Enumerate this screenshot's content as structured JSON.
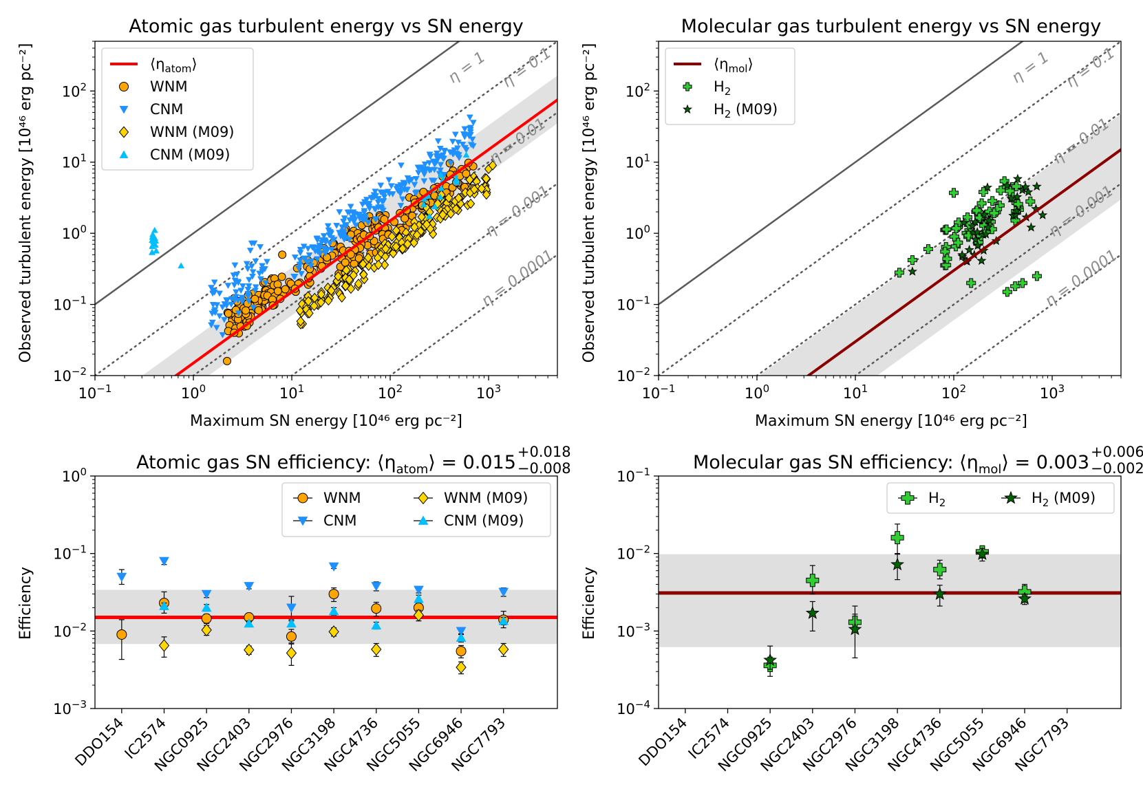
{
  "figure": {
    "background": "#ffffff"
  },
  "chart_data": [
    {
      "id": "p1",
      "type": "scatter",
      "title": "Atomic gas turbulent energy vs SN energy",
      "xlabel": "Maximum SN energy [10⁴⁶ erg pc⁻²]",
      "ylabel": "Observed turbulent energy [10⁴⁶ erg pc⁻²]",
      "xscale": "log",
      "yscale": "log",
      "xlim": [
        0.1,
        5000
      ],
      "ylim": [
        0.01,
        500
      ],
      "xticks": [
        {
          "v": 0.1,
          "b": "10",
          "e": "−1"
        },
        {
          "v": 1,
          "b": "10",
          "e": "0"
        },
        {
          "v": 10,
          "b": "10",
          "e": "1"
        },
        {
          "v": 100,
          "b": "10",
          "e": "2"
        },
        {
          "v": 1000,
          "b": "10",
          "e": "3"
        }
      ],
      "yticks": [
        {
          "v": 0.01,
          "b": "10",
          "e": "−2"
        },
        {
          "v": 0.1,
          "b": "10",
          "e": "−1"
        },
        {
          "v": 1,
          "b": "10",
          "e": "0"
        },
        {
          "v": 10,
          "b": "10",
          "e": "1"
        },
        {
          "v": 100,
          "b": "10",
          "e": "2"
        }
      ],
      "eta_lines": [
        {
          "eta": 1,
          "label": "η = 1",
          "style": "solid"
        },
        {
          "eta": 0.1,
          "label": "η = 0.1",
          "style": "dotted"
        },
        {
          "eta": 0.01,
          "label": "η = 0.01",
          "style": "dotted"
        },
        {
          "eta": 0.001,
          "label": "η = 0.001",
          "style": "dotted"
        },
        {
          "eta": 0.0001,
          "label": "η = 0.0001",
          "style": "dotted"
        }
      ],
      "mean": {
        "value": 0.015,
        "low": 0.007,
        "high": 0.033,
        "color": "#ff0000",
        "label": "⟨η",
        "sub": "atom",
        "suffix": "⟩"
      },
      "legend": [
        {
          "key": "mean",
          "label": "⟨η",
          "sub": "atom",
          "suffix": "⟩"
        },
        {
          "key": "wnm",
          "label": "WNM"
        },
        {
          "key": "cnm",
          "label": "CNM"
        },
        {
          "key": "wnm09",
          "label": "WNM (M09)"
        },
        {
          "key": "cnm09",
          "label": "CNM (M09)"
        }
      ],
      "series": [
        {
          "key": "wnm",
          "name": "WNM",
          "marker": "circle",
          "color": "#ffa500",
          "clouds": [
            {
              "x": [
                2.2,
                8
              ],
              "eta": 0.025,
              "n": 90,
              "spread": 0.2
            },
            {
              "x": [
                6,
                90
              ],
              "eta": 0.02,
              "n": 80,
              "spread": 0.15
            },
            {
              "x": [
                30,
                700
              ],
              "eta": 0.012,
              "n": 110,
              "spread": 0.2
            }
          ],
          "points": [
            {
              "x": 2.2,
              "y": 0.016
            },
            {
              "x": 2.6,
              "y": 0.04
            },
            {
              "x": 3.5,
              "y": 0.05
            },
            {
              "x": 8,
              "y": 0.5
            }
          ]
        },
        {
          "key": "cnm",
          "name": "CNM",
          "marker": "tri_down",
          "color": "#1e90ff",
          "clouds": [
            {
              "x": [
                1.5,
                6
              ],
              "eta": 0.06,
              "n": 70,
              "spread": 0.35
            },
            {
              "x": [
                10,
                700
              ],
              "eta": 0.035,
              "n": 230,
              "spread": 0.18
            }
          ],
          "points": []
        },
        {
          "key": "wnm09",
          "name": "WNM (M09)",
          "marker": "diamond",
          "color": "#ffd700",
          "clouds": [
            {
              "x": [
                12,
                1000
              ],
              "eta": 0.006,
              "n": 190,
              "spread": 0.15
            }
          ],
          "points": [
            {
              "x": 1000,
              "y": 8
            },
            {
              "x": 1100,
              "y": 9
            },
            {
              "x": 950,
              "y": 3.5
            }
          ]
        },
        {
          "key": "cnm09",
          "name": "CNM (M09)",
          "marker": "tri_up",
          "color": "#00bfff",
          "clouds": [
            {
              "x": [
                0.38,
                0.42
              ],
              "eta": 2.0,
              "n": 14,
              "spread": 0.15
            },
            {
              "x": [
                200,
                600
              ],
              "eta": 0.012,
              "n": 15,
              "spread": 0.2
            }
          ],
          "points": [
            {
              "x": 0.75,
              "y": 0.35
            }
          ]
        }
      ]
    },
    {
      "id": "p2",
      "type": "scatter",
      "title": "Molecular gas turbulent energy vs SN energy",
      "xlabel": "Maximum SN energy [10⁴⁶ erg pc⁻²]",
      "ylabel": "Observed turbulent energy [10⁴⁶ erg pc⁻²]",
      "xscale": "log",
      "yscale": "log",
      "xlim": [
        0.1,
        5000
      ],
      "ylim": [
        0.01,
        500
      ],
      "xticks": [
        {
          "v": 0.1,
          "b": "10",
          "e": "−1"
        },
        {
          "v": 1,
          "b": "10",
          "e": "0"
        },
        {
          "v": 10,
          "b": "10",
          "e": "1"
        },
        {
          "v": 100,
          "b": "10",
          "e": "2"
        },
        {
          "v": 1000,
          "b": "10",
          "e": "3"
        }
      ],
      "yticks": [
        {
          "v": 0.01,
          "b": "10",
          "e": "−2"
        },
        {
          "v": 0.1,
          "b": "10",
          "e": "−1"
        },
        {
          "v": 1,
          "b": "10",
          "e": "0"
        },
        {
          "v": 10,
          "b": "10",
          "e": "1"
        },
        {
          "v": 100,
          "b": "10",
          "e": "2"
        }
      ],
      "eta_lines": [
        {
          "eta": 1,
          "label": "η = 1",
          "style": "solid"
        },
        {
          "eta": 0.1,
          "label": "η = 0.1",
          "style": "dotted"
        },
        {
          "eta": 0.01,
          "label": "η = 0.01",
          "style": "dotted"
        },
        {
          "eta": 0.001,
          "label": "η = 0.001",
          "style": "dotted"
        },
        {
          "eta": 0.0001,
          "label": "η = 0.0001",
          "style": "dotted"
        }
      ],
      "mean": {
        "value": 0.003,
        "low": 0.0006,
        "high": 0.0095,
        "color": "#8b0000",
        "label": "⟨η",
        "sub": "mol",
        "suffix": "⟩"
      },
      "legend": [
        {
          "key": "mean",
          "label": "⟨η",
          "sub": "mol",
          "suffix": "⟩"
        },
        {
          "key": "h2",
          "label": "H",
          "sub": "2"
        },
        {
          "key": "h209",
          "label": "H",
          "sub": "2",
          "suffix": " (M09)"
        }
      ],
      "series": [
        {
          "key": "h2",
          "name": "H2",
          "marker": "plus",
          "color": "#32cd32",
          "clouds": [
            {
              "x": [
                80,
                500
              ],
              "eta": 0.008,
              "n": 55,
              "spread": 0.3
            }
          ],
          "points": [
            {
              "x": 28,
              "y": 0.28
            },
            {
              "x": 38,
              "y": 0.42
            },
            {
              "x": 55,
              "y": 0.6
            },
            {
              "x": 100,
              "y": 3.7
            },
            {
              "x": 350,
              "y": 0.15
            },
            {
              "x": 420,
              "y": 0.18
            },
            {
              "x": 500,
              "y": 0.2
            },
            {
              "x": 700,
              "y": 0.25
            },
            {
              "x": 150,
              "y": 0.2
            },
            {
              "x": 200,
              "y": 3.8
            },
            {
              "x": 300,
              "y": 4.0
            },
            {
              "x": 600,
              "y": 2.8
            }
          ]
        },
        {
          "key": "h209",
          "name": "H2 (M09)",
          "marker": "star",
          "color": "#006400",
          "clouds": [
            {
              "x": [
                120,
                800
              ],
              "eta": 0.005,
              "n": 35,
              "spread": 0.3
            }
          ],
          "points": [
            {
              "x": 38,
              "y": 0.29
            },
            {
              "x": 220,
              "y": 4.4
            },
            {
              "x": 800,
              "y": 1.8
            }
          ]
        }
      ]
    },
    {
      "id": "p3",
      "type": "errorbar",
      "title": "Atomic gas SN efficiency: ⟨η",
      "title_sub": "atom",
      "title_tail": "⟩ = 0.015",
      "title_sup_top": "+0.018",
      "title_sup_bot": "−0.008",
      "ylabel": "Efficiency",
      "yscale": "log",
      "ylim": [
        0.001,
        1
      ],
      "yticks": [
        {
          "v": 0.001,
          "b": "10",
          "e": "−3"
        },
        {
          "v": 0.01,
          "b": "10",
          "e": "−2"
        },
        {
          "v": 0.1,
          "b": "10",
          "e": "−1"
        },
        {
          "v": 1,
          "b": "10",
          "e": "0"
        }
      ],
      "categories": [
        "DDO154",
        "IC2574",
        "NGC0925",
        "NGC2403",
        "NGC2976",
        "NGC3198",
        "NGC4736",
        "NGC5055",
        "NGC6946",
        "NGC7793"
      ],
      "mean": {
        "value": 0.015,
        "low": 0.0068,
        "high": 0.034,
        "color": "#ff0000"
      },
      "legend": [
        {
          "key": "wnm",
          "label": "WNM"
        },
        {
          "key": "wnm09",
          "label": "WNM (M09)"
        },
        {
          "key": "cnm",
          "label": "CNM"
        },
        {
          "key": "cnm09",
          "label": "CNM (M09)"
        }
      ],
      "series": [
        {
          "key": "wnm",
          "name": "WNM",
          "marker": "circle",
          "color": "#ffa500",
          "values": [
            0.009,
            0.023,
            0.0145,
            0.015,
            0.0085,
            0.03,
            0.0195,
            0.02,
            0.0055,
            0.014
          ],
          "err_lo": [
            0.0047,
            0.006,
            0.002,
            0.002,
            0.0015,
            0.006,
            0.004,
            0.004,
            0.001,
            0.003
          ],
          "err_hi": [
            0.005,
            0.009,
            0.002,
            0.002,
            0.002,
            0.006,
            0.004,
            0.004,
            0.001,
            0.004
          ]
        },
        {
          "key": "cnm",
          "name": "CNM",
          "marker": "tri_down",
          "color": "#1e90ff",
          "values": [
            0.05,
            0.08,
            0.03,
            0.038,
            0.02,
            0.068,
            0.038,
            0.034,
            0.01,
            0.032
          ],
          "err_lo": [
            0.01,
            0.008,
            0.003,
            0.003,
            0.006,
            0.004,
            0.005,
            0.003,
            0.001,
            0.004
          ],
          "err_hi": [
            0.012,
            0.008,
            0.003,
            0.003,
            0.008,
            0.004,
            0.005,
            0.003,
            0.001,
            0.004
          ]
        },
        {
          "key": "wnm09",
          "name": "WNM (M09)",
          "marker": "diamond",
          "color": "#ffd700",
          "values": [
            null,
            0.0065,
            0.0103,
            0.0057,
            0.0052,
            0.0098,
            0.0058,
            0.016,
            0.0034,
            0.0058
          ],
          "err_lo": [
            null,
            0.0019,
            0.0015,
            0.0007,
            0.0016,
            0.0012,
            0.0011,
            0.0025,
            0.0006,
            0.0011
          ],
          "err_hi": [
            null,
            0.0019,
            0.0015,
            0.0007,
            0.0016,
            0.0012,
            0.0011,
            0.0025,
            0.0006,
            0.0011
          ]
        },
        {
          "key": "cnm09",
          "name": "CNM (M09)",
          "marker": "tri_up",
          "color": "#00bfff",
          "values": [
            null,
            0.021,
            0.02,
            0.0125,
            0.0125,
            0.018,
            0.0118,
            0.026,
            0.0082,
            0.0135
          ],
          "err_lo": [
            null,
            0.002,
            0.002,
            0.001,
            0.001,
            0.002,
            0.0012,
            0.003,
            0.001,
            0.0015
          ],
          "err_hi": [
            null,
            0.002,
            0.002,
            0.001,
            0.001,
            0.002,
            0.0012,
            0.003,
            0.001,
            0.0015
          ]
        }
      ]
    },
    {
      "id": "p4",
      "type": "errorbar",
      "title": "Molecular gas SN efficiency: ⟨η",
      "title_sub": "mol",
      "title_tail": "⟩ = 0.003",
      "title_sup_top": "+0.006",
      "title_sup_bot": "−0.002",
      "ylabel": "Efficiency",
      "yscale": "log",
      "ylim": [
        0.0001,
        0.1
      ],
      "yticks": [
        {
          "v": 0.0001,
          "b": "10",
          "e": "−4"
        },
        {
          "v": 0.001,
          "b": "10",
          "e": "−3"
        },
        {
          "v": 0.01,
          "b": "10",
          "e": "−2"
        },
        {
          "v": 0.1,
          "b": "10",
          "e": "−1"
        }
      ],
      "categories": [
        "DDO154",
        "IC2574",
        "NGC0925",
        "NGC2403",
        "NGC2976",
        "NGC3198",
        "NGC4736",
        "NGC5055",
        "NGC6946",
        "NGC7793"
      ],
      "mean": {
        "value": 0.0031,
        "low": 0.00062,
        "high": 0.0098,
        "color": "#8b0000"
      },
      "legend": [
        {
          "key": "h2",
          "label": "H",
          "sub": "2"
        },
        {
          "key": "h209",
          "label": "H",
          "sub": "2",
          "suffix": " (M09)"
        }
      ],
      "series": [
        {
          "key": "h2",
          "name": "H2",
          "marker": "plus",
          "color": "#32cd32",
          "values": [
            null,
            null,
            0.00036,
            0.0045,
            0.0013,
            0.016,
            0.0062,
            0.0105,
            0.0032,
            null
          ],
          "err_lo": [
            null,
            null,
            0.0001,
            0.0015,
            0.0003,
            0.006,
            0.0015,
            0.0015,
            0.0008,
            null
          ],
          "err_hi": [
            null,
            null,
            0.0001,
            0.0025,
            0.0008,
            0.008,
            0.002,
            0.0015,
            0.0008,
            null
          ]
        },
        {
          "key": "h209",
          "name": "H2 (M09)",
          "marker": "star",
          "color": "#006400",
          "values": [
            null,
            null,
            0.00042,
            0.0017,
            0.00105,
            0.0072,
            0.003,
            0.0098,
            0.0026,
            null
          ],
          "err_lo": [
            null,
            null,
            0.0001,
            0.0007,
            0.0006,
            0.0026,
            0.0009,
            0.0018,
            0.0004,
            null
          ],
          "err_hi": [
            null,
            null,
            0.00022,
            0.0007,
            0.0006,
            0.0026,
            0.0009,
            0.0018,
            0.0004,
            null
          ]
        }
      ]
    }
  ]
}
